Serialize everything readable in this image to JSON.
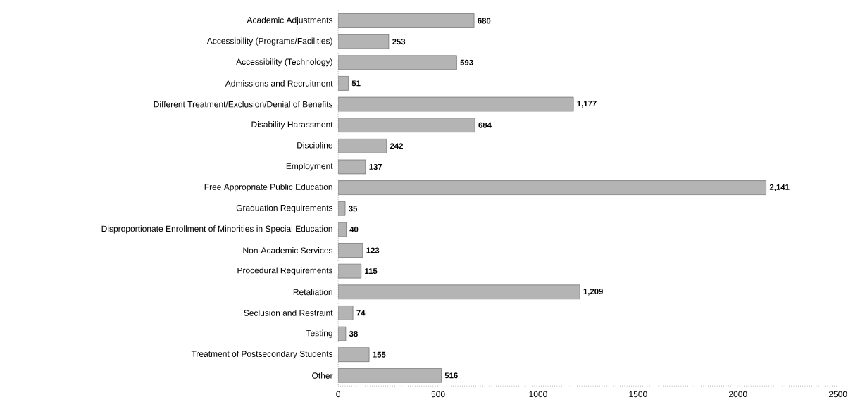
{
  "chart_data": {
    "type": "bar",
    "orientation": "horizontal",
    "categories": [
      "Academic Adjustments",
      "Accessibility (Programs/Facilities)",
      "Accessibility (Technology)",
      "Admissions and Recruitment",
      "Different Treatment/Exclusion/Denial of Benefits",
      "Disability Harassment",
      "Discipline",
      "Employment",
      "Free Appropriate Public Education",
      "Graduation Requirements",
      "Disproportionate Enrollment of Minorities in Special Education",
      "Non-Academic Services",
      "Procedural Requirements",
      "Retaliation",
      "Seclusion and Restraint",
      "Testing",
      "Treatment of Postsecondary Students",
      "Other"
    ],
    "values": [
      680,
      253,
      593,
      51,
      1177,
      684,
      242,
      137,
      2141,
      35,
      40,
      123,
      115,
      1209,
      74,
      38,
      155,
      516
    ],
    "value_labels": [
      "680",
      "253",
      "593",
      "51",
      "1,177",
      "684",
      "242",
      "137",
      "2,141",
      "35",
      "40",
      "123",
      "115",
      "1,209",
      "74",
      "38",
      "155",
      "516"
    ],
    "color": "#b4b4b4",
    "xlim": [
      0,
      2500
    ],
    "xticks": [
      0,
      500,
      1000,
      1500,
      2000,
      2500
    ]
  }
}
